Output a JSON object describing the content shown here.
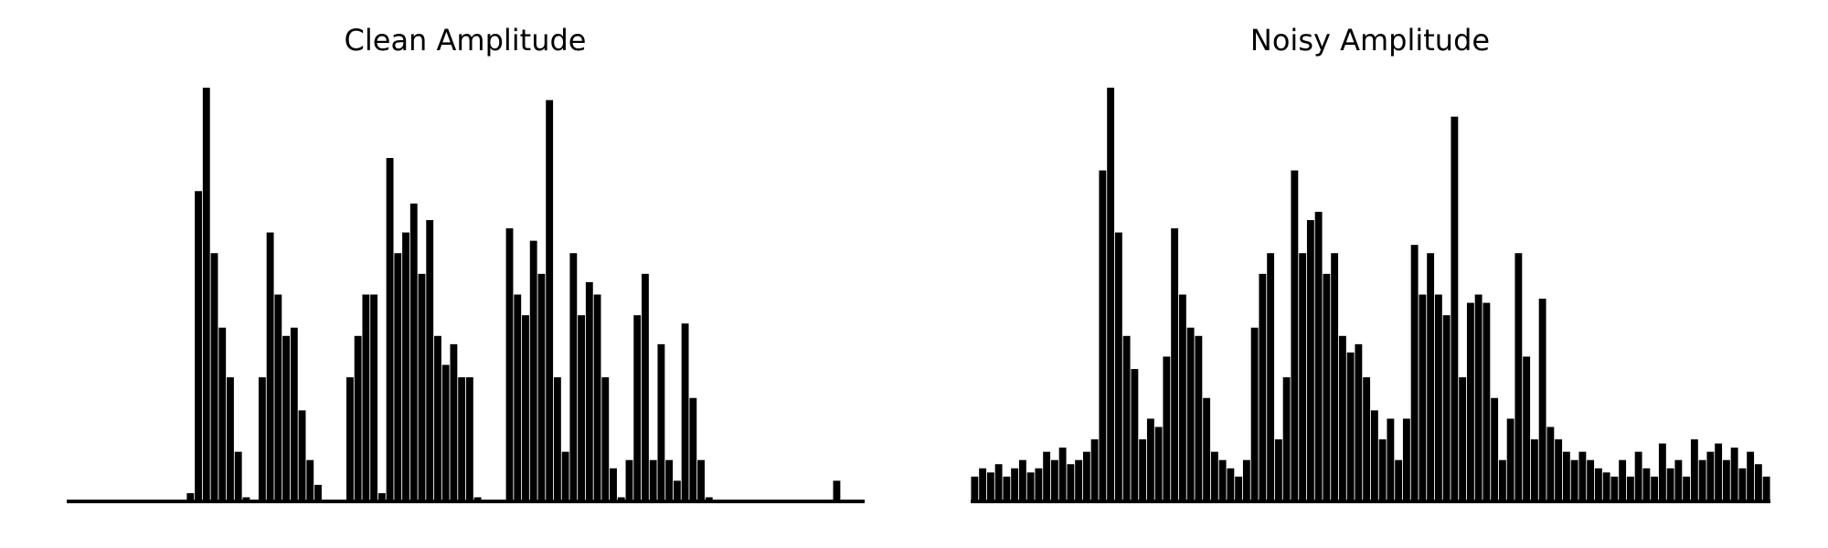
{
  "chart_data": [
    {
      "type": "area",
      "title": "Clean Amplitude",
      "color": "#000000",
      "ylim": [
        0,
        1
      ],
      "values": [
        0,
        0,
        0,
        0,
        0,
        0,
        0,
        0,
        0,
        0,
        0,
        0,
        0,
        0,
        0,
        0.02,
        0.75,
        1.0,
        0.6,
        0.42,
        0.3,
        0.12,
        0.01,
        0,
        0.3,
        0.65,
        0.5,
        0.4,
        0.42,
        0.22,
        0.1,
        0.04,
        0,
        0,
        0,
        0.3,
        0.4,
        0.5,
        0.5,
        0.02,
        0.83,
        0.6,
        0.65,
        0.72,
        0.55,
        0.68,
        0.4,
        0.33,
        0.38,
        0.3,
        0.3,
        0.01,
        0,
        0,
        0,
        0.66,
        0.5,
        0.45,
        0.63,
        0.55,
        0.97,
        0.3,
        0.12,
        0.6,
        0.45,
        0.53,
        0.5,
        0.3,
        0.08,
        0.01,
        0.1,
        0.45,
        0.55,
        0.1,
        0.38,
        0.1,
        0.05,
        0.43,
        0.25,
        0.1,
        0.01,
        0,
        0,
        0,
        0,
        0,
        0,
        0,
        0,
        0,
        0,
        0,
        0,
        0,
        0,
        0,
        0.05,
        0,
        0,
        0
      ]
    },
    {
      "type": "area",
      "title": "Noisy Amplitude",
      "color": "#000000",
      "ylim": [
        0,
        1
      ],
      "values": [
        0.06,
        0.08,
        0.07,
        0.09,
        0.06,
        0.08,
        0.1,
        0.07,
        0.08,
        0.12,
        0.1,
        0.13,
        0.09,
        0.1,
        0.12,
        0.15,
        0.8,
        1.0,
        0.65,
        0.4,
        0.32,
        0.15,
        0.2,
        0.18,
        0.35,
        0.66,
        0.5,
        0.42,
        0.4,
        0.25,
        0.12,
        0.1,
        0.08,
        0.06,
        0.1,
        0.42,
        0.55,
        0.6,
        0.15,
        0.3,
        0.8,
        0.6,
        0.68,
        0.7,
        0.55,
        0.6,
        0.4,
        0.36,
        0.38,
        0.3,
        0.22,
        0.15,
        0.2,
        0.1,
        0.2,
        0.62,
        0.5,
        0.6,
        0.5,
        0.45,
        0.93,
        0.3,
        0.48,
        0.5,
        0.48,
        0.25,
        0.1,
        0.2,
        0.6,
        0.35,
        0.15,
        0.49,
        0.18,
        0.15,
        0.12,
        0.1,
        0.12,
        0.1,
        0.08,
        0.07,
        0.06,
        0.1,
        0.06,
        0.12,
        0.08,
        0.06,
        0.14,
        0.08,
        0.1,
        0.06,
        0.15,
        0.1,
        0.12,
        0.14,
        0.1,
        0.13,
        0.08,
        0.12,
        0.09,
        0.06
      ]
    }
  ]
}
